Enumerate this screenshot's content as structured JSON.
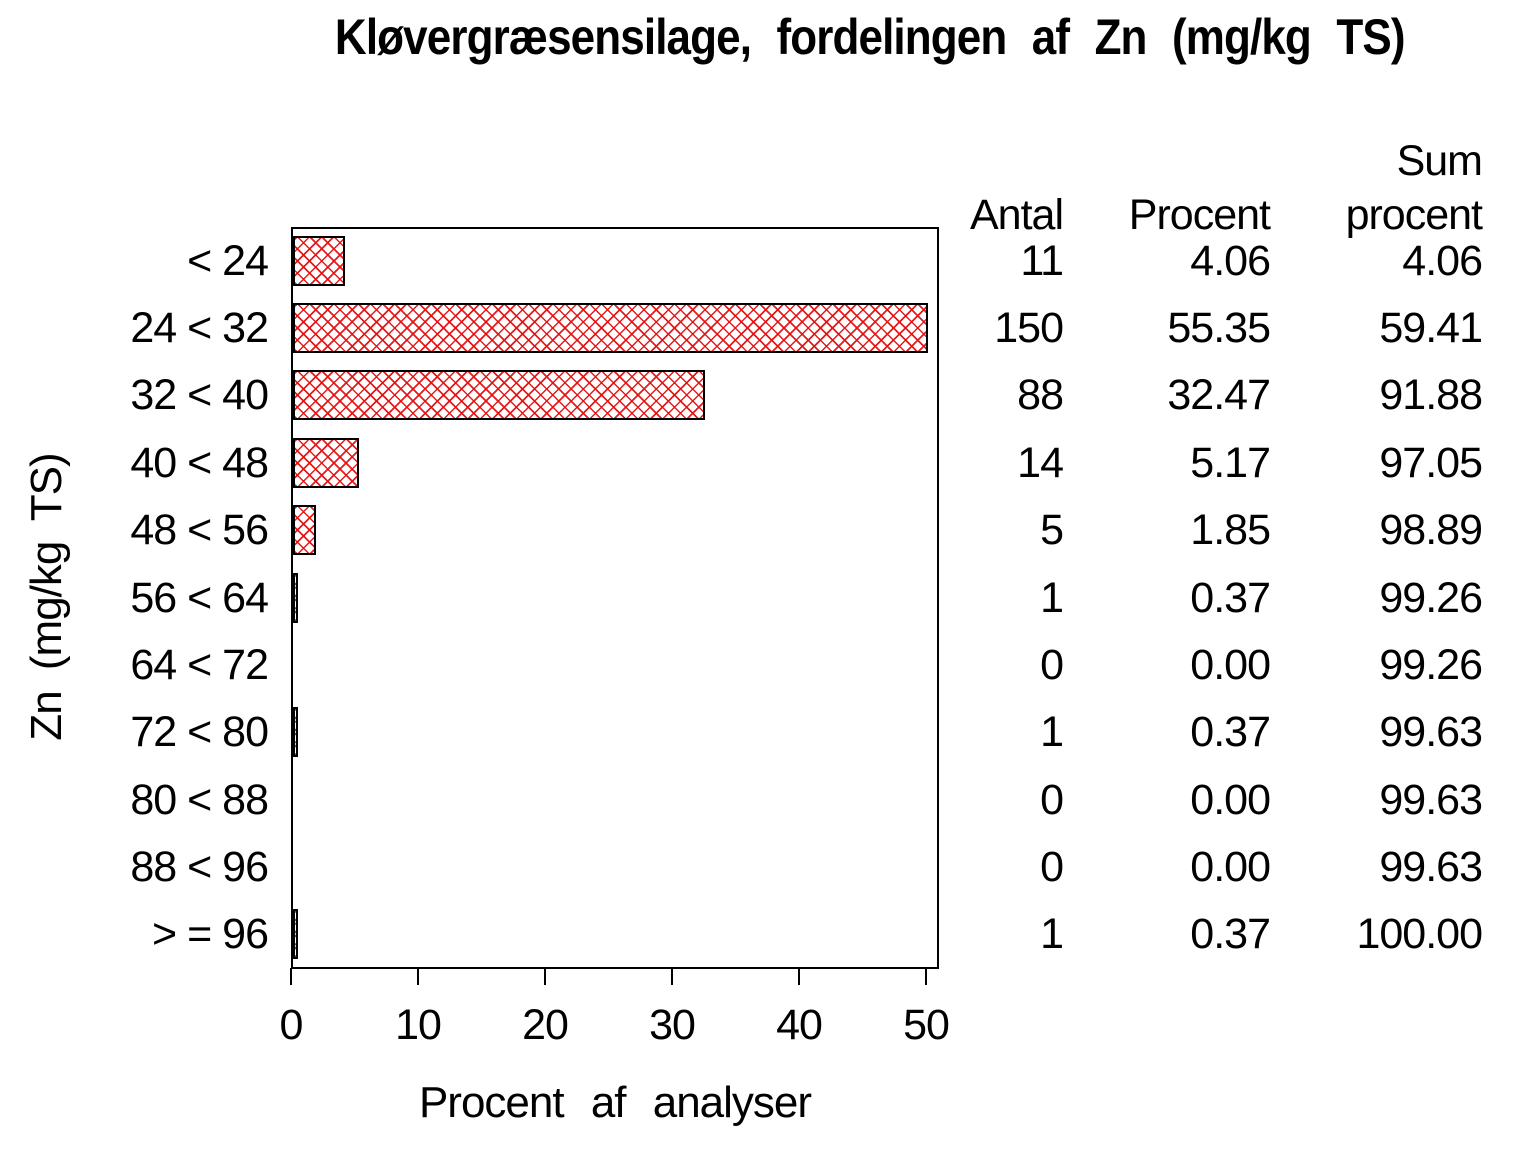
{
  "title": "Kløvergræsensilage, fordelingen af Zn (mg/kg TS)",
  "chart_data": {
    "type": "bar",
    "orientation": "horizontal",
    "title": "Kløvergræsensilage, fordelingen af Zn (mg/kg TS)",
    "xlabel": "Procent af analyser",
    "ylabel": "Zn (mg/kg TS)",
    "categories": [
      "< 24",
      "24 < 32",
      "32 < 40",
      "40 < 48",
      "48 < 56",
      "56 < 64",
      "64 < 72",
      "72 < 80",
      "80 < 88",
      "88 < 96",
      "> = 96"
    ],
    "values": [
      4.06,
      55.35,
      32.47,
      5.17,
      1.85,
      0.37,
      0.0,
      0.37,
      0.0,
      0.0,
      0.37
    ],
    "xlim": [
      0,
      50
    ],
    "xticks": [
      "0",
      "10",
      "20",
      "30",
      "40",
      "50"
    ],
    "grid": false,
    "legend": "none",
    "note": "bars clipped at axis max 50; hatch-filled red bars with black outline"
  },
  "table": {
    "header": {
      "col1": "Antal",
      "col2": "Procent",
      "col3_line1": "Sum",
      "col3_line2": "procent"
    },
    "rows": [
      {
        "antal": "11",
        "procent": "4.06",
        "sum": "4.06"
      },
      {
        "antal": "150",
        "procent": "55.35",
        "sum": "59.41"
      },
      {
        "antal": "88",
        "procent": "32.47",
        "sum": "91.88"
      },
      {
        "antal": "14",
        "procent": "5.17",
        "sum": "97.05"
      },
      {
        "antal": "5",
        "procent": "1.85",
        "sum": "98.89"
      },
      {
        "antal": "1",
        "procent": "0.37",
        "sum": "99.26"
      },
      {
        "antal": "0",
        "procent": "0.00",
        "sum": "99.26"
      },
      {
        "antal": "1",
        "procent": "0.37",
        "sum": "99.63"
      },
      {
        "antal": "0",
        "procent": "0.00",
        "sum": "99.63"
      },
      {
        "antal": "0",
        "procent": "0.00",
        "sum": "99.63"
      },
      {
        "antal": "1",
        "procent": "0.37",
        "sum": "100.00"
      }
    ]
  },
  "colors": {
    "bar_hatch": "#e41010",
    "bar_outline": "#000000",
    "text": "#000000",
    "background": "#ffffff"
  }
}
